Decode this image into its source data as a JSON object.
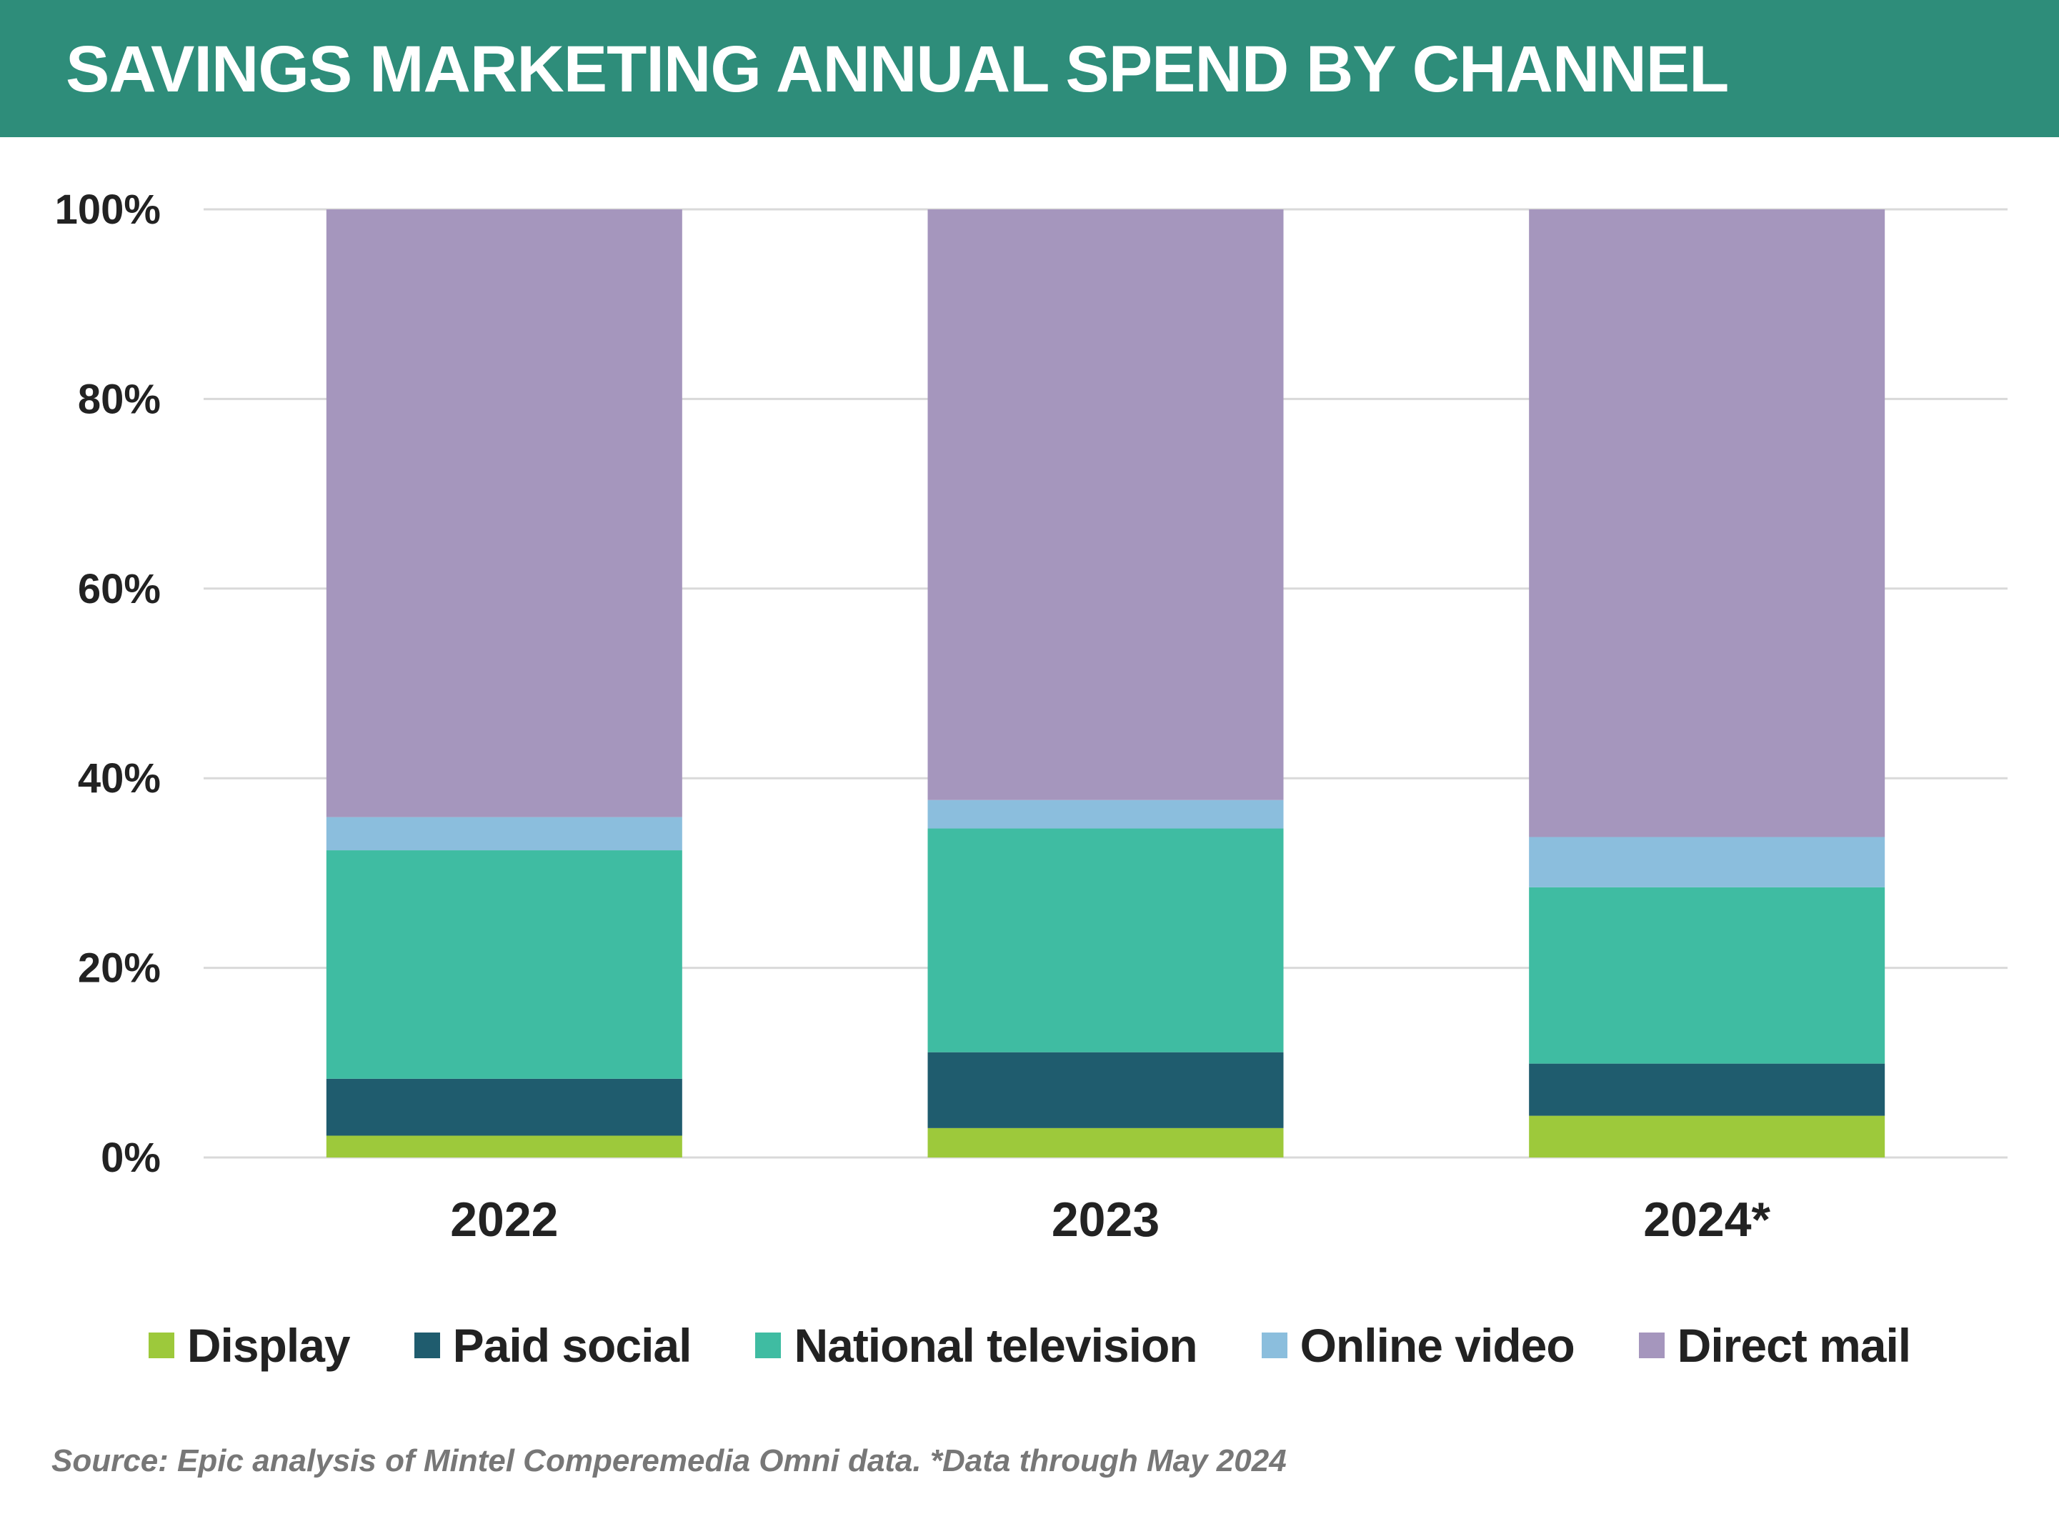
{
  "header": {
    "title": "SAVINGS MARKETING ANNUAL SPEND BY CHANNEL"
  },
  "colors": {
    "header_bg": "#2e8d7a",
    "grid": "#d9d9d9",
    "text": "#222222",
    "source_text": "#777777"
  },
  "chart_data": {
    "type": "bar",
    "stacked": true,
    "categories": [
      "2022",
      "2023",
      "2024*"
    ],
    "series": [
      {
        "name": "Display",
        "color": "#9dc93b",
        "values": [
          2.3,
          3.1,
          4.4
        ]
      },
      {
        "name": "Paid social",
        "color": "#1f5c6e",
        "values": [
          6.0,
          8.0,
          5.5
        ]
      },
      {
        "name": "National television",
        "color": "#3fbca2",
        "values": [
          24.1,
          23.6,
          18.6
        ]
      },
      {
        "name": "Online video",
        "color": "#8bbedd",
        "values": [
          3.5,
          3.0,
          5.3
        ]
      },
      {
        "name": "Direct mail",
        "color": "#a596bd",
        "values": [
          64.1,
          62.3,
          66.2
        ]
      }
    ],
    "yticks": [
      "0%",
      "20%",
      "40%",
      "60%",
      "80%",
      "100%"
    ],
    "ylim": [
      0,
      100
    ],
    "grid": true,
    "legend_position": "bottom"
  },
  "footer": {
    "source": "Source: Epic analysis of Mintel Comperemedia Omni data. *Data through May 2024"
  }
}
